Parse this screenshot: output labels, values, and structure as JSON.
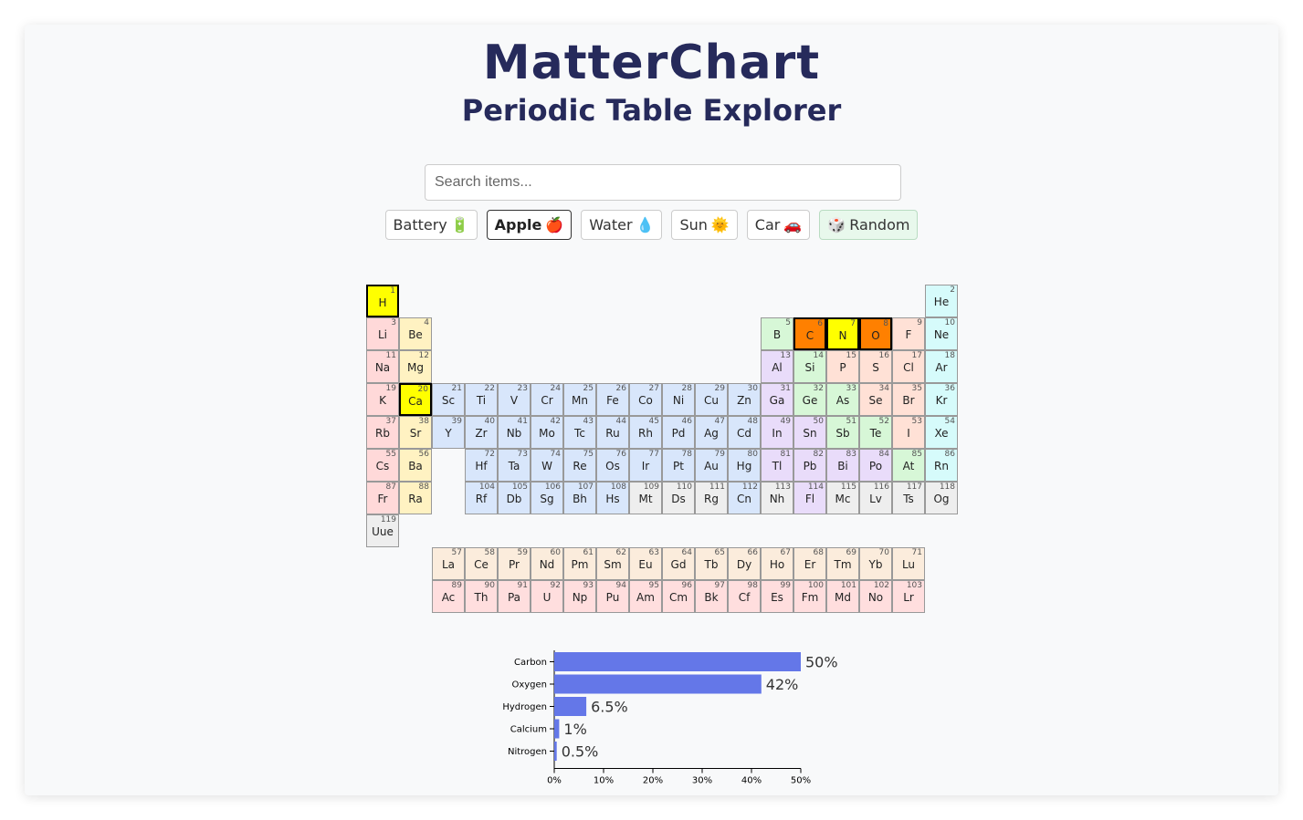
{
  "header": {
    "title": "MatterChart",
    "subtitle": "Periodic Table Explorer"
  },
  "search": {
    "placeholder": "Search items...",
    "value": ""
  },
  "items": [
    {
      "label": "Battery",
      "emoji": "🔋",
      "active": false
    },
    {
      "label": "Apple",
      "emoji": "🍎",
      "active": true
    },
    {
      "label": "Water",
      "emoji": "💧",
      "active": false
    },
    {
      "label": "Sun",
      "emoji": "🌞",
      "active": false
    },
    {
      "label": "Car",
      "emoji": "🚗",
      "active": false
    }
  ],
  "random_button": {
    "label": "Random",
    "emoji": "🎲"
  },
  "category_colors": {
    "alkali": "#ffd9d9",
    "alkaline": "#fff2c2",
    "transition": "#d8e6fb",
    "post_transition": "#e9dcfa",
    "metalloid": "#d7f7d7",
    "nonmetal": "#ffe1d6",
    "noble": "#d6fbfb",
    "lanthanide": "#fbecdc",
    "actinide": "#ffdede",
    "unknown": "#eeeeee"
  },
  "highlight_colors": {
    "strong": "#ff8000",
    "medium": "#ffff00"
  },
  "elements": [
    [
      "H",
      1,
      1,
      1,
      "medium"
    ],
    [
      "He",
      2,
      1,
      18,
      "noble"
    ],
    [
      "Li",
      3,
      2,
      1,
      "alkali"
    ],
    [
      "Be",
      4,
      2,
      2,
      "alkaline"
    ],
    [
      "B",
      5,
      2,
      13,
      "metalloid"
    ],
    [
      "C",
      6,
      2,
      14,
      "strong"
    ],
    [
      "N",
      7,
      2,
      15,
      "medium"
    ],
    [
      "O",
      8,
      2,
      16,
      "strong"
    ],
    [
      "F",
      9,
      2,
      17,
      "nonmetal"
    ],
    [
      "Ne",
      10,
      2,
      18,
      "noble"
    ],
    [
      "Na",
      11,
      3,
      1,
      "alkali"
    ],
    [
      "Mg",
      12,
      3,
      2,
      "alkaline"
    ],
    [
      "Al",
      13,
      3,
      13,
      "post_transition"
    ],
    [
      "Si",
      14,
      3,
      14,
      "metalloid"
    ],
    [
      "P",
      15,
      3,
      15,
      "nonmetal"
    ],
    [
      "S",
      16,
      3,
      16,
      "nonmetal"
    ],
    [
      "Cl",
      17,
      3,
      17,
      "nonmetal"
    ],
    [
      "Ar",
      18,
      3,
      18,
      "noble"
    ],
    [
      "K",
      19,
      4,
      1,
      "alkali"
    ],
    [
      "Ca",
      20,
      4,
      2,
      "medium"
    ],
    [
      "Sc",
      21,
      4,
      3,
      "transition"
    ],
    [
      "Ti",
      22,
      4,
      4,
      "transition"
    ],
    [
      "V",
      23,
      4,
      5,
      "transition"
    ],
    [
      "Cr",
      24,
      4,
      6,
      "transition"
    ],
    [
      "Mn",
      25,
      4,
      7,
      "transition"
    ],
    [
      "Fe",
      26,
      4,
      8,
      "transition"
    ],
    [
      "Co",
      27,
      4,
      9,
      "transition"
    ],
    [
      "Ni",
      28,
      4,
      10,
      "transition"
    ],
    [
      "Cu",
      29,
      4,
      11,
      "transition"
    ],
    [
      "Zn",
      30,
      4,
      12,
      "transition"
    ],
    [
      "Ga",
      31,
      4,
      13,
      "post_transition"
    ],
    [
      "Ge",
      32,
      4,
      14,
      "metalloid"
    ],
    [
      "As",
      33,
      4,
      15,
      "metalloid"
    ],
    [
      "Se",
      34,
      4,
      16,
      "nonmetal"
    ],
    [
      "Br",
      35,
      4,
      17,
      "nonmetal"
    ],
    [
      "Kr",
      36,
      4,
      18,
      "noble"
    ],
    [
      "Rb",
      37,
      5,
      1,
      "alkali"
    ],
    [
      "Sr",
      38,
      5,
      2,
      "alkaline"
    ],
    [
      "Y",
      39,
      5,
      3,
      "transition"
    ],
    [
      "Zr",
      40,
      5,
      4,
      "transition"
    ],
    [
      "Nb",
      41,
      5,
      5,
      "transition"
    ],
    [
      "Mo",
      42,
      5,
      6,
      "transition"
    ],
    [
      "Tc",
      43,
      5,
      7,
      "transition"
    ],
    [
      "Ru",
      44,
      5,
      8,
      "transition"
    ],
    [
      "Rh",
      45,
      5,
      9,
      "transition"
    ],
    [
      "Pd",
      46,
      5,
      10,
      "transition"
    ],
    [
      "Ag",
      47,
      5,
      11,
      "transition"
    ],
    [
      "Cd",
      48,
      5,
      12,
      "transition"
    ],
    [
      "In",
      49,
      5,
      13,
      "post_transition"
    ],
    [
      "Sn",
      50,
      5,
      14,
      "post_transition"
    ],
    [
      "Sb",
      51,
      5,
      15,
      "metalloid"
    ],
    [
      "Te",
      52,
      5,
      16,
      "metalloid"
    ],
    [
      "I",
      53,
      5,
      17,
      "nonmetal"
    ],
    [
      "Xe",
      54,
      5,
      18,
      "noble"
    ],
    [
      "Cs",
      55,
      6,
      1,
      "alkali"
    ],
    [
      "Ba",
      56,
      6,
      2,
      "alkaline"
    ],
    [
      "Hf",
      72,
      6,
      4,
      "transition"
    ],
    [
      "Ta",
      73,
      6,
      5,
      "transition"
    ],
    [
      "W",
      74,
      6,
      6,
      "transition"
    ],
    [
      "Re",
      75,
      6,
      7,
      "transition"
    ],
    [
      "Os",
      76,
      6,
      8,
      "transition"
    ],
    [
      "Ir",
      77,
      6,
      9,
      "transition"
    ],
    [
      "Pt",
      78,
      6,
      10,
      "transition"
    ],
    [
      "Au",
      79,
      6,
      11,
      "transition"
    ],
    [
      "Hg",
      80,
      6,
      12,
      "transition"
    ],
    [
      "Tl",
      81,
      6,
      13,
      "post_transition"
    ],
    [
      "Pb",
      82,
      6,
      14,
      "post_transition"
    ],
    [
      "Bi",
      83,
      6,
      15,
      "post_transition"
    ],
    [
      "Po",
      84,
      6,
      16,
      "post_transition"
    ],
    [
      "At",
      85,
      6,
      17,
      "metalloid"
    ],
    [
      "Rn",
      86,
      6,
      18,
      "noble"
    ],
    [
      "Fr",
      87,
      7,
      1,
      "alkali"
    ],
    [
      "Ra",
      88,
      7,
      2,
      "alkaline"
    ],
    [
      "Rf",
      104,
      7,
      4,
      "transition"
    ],
    [
      "Db",
      105,
      7,
      5,
      "transition"
    ],
    [
      "Sg",
      106,
      7,
      6,
      "transition"
    ],
    [
      "Bh",
      107,
      7,
      7,
      "transition"
    ],
    [
      "Hs",
      108,
      7,
      8,
      "transition"
    ],
    [
      "Mt",
      109,
      7,
      9,
      "unknown"
    ],
    [
      "Ds",
      110,
      7,
      10,
      "unknown"
    ],
    [
      "Rg",
      111,
      7,
      11,
      "unknown"
    ],
    [
      "Cn",
      112,
      7,
      12,
      "transition"
    ],
    [
      "Nh",
      113,
      7,
      13,
      "unknown"
    ],
    [
      "Fl",
      114,
      7,
      14,
      "post_transition"
    ],
    [
      "Mc",
      115,
      7,
      15,
      "unknown"
    ],
    [
      "Lv",
      116,
      7,
      16,
      "unknown"
    ],
    [
      "Ts",
      117,
      7,
      17,
      "unknown"
    ],
    [
      "Og",
      118,
      7,
      18,
      "unknown"
    ],
    [
      "Uue",
      119,
      8,
      1,
      "unknown"
    ],
    [
      "La",
      57,
      9,
      3,
      "lanthanide"
    ],
    [
      "Ce",
      58,
      9,
      4,
      "lanthanide"
    ],
    [
      "Pr",
      59,
      9,
      5,
      "lanthanide"
    ],
    [
      "Nd",
      60,
      9,
      6,
      "lanthanide"
    ],
    [
      "Pm",
      61,
      9,
      7,
      "lanthanide"
    ],
    [
      "Sm",
      62,
      9,
      8,
      "lanthanide"
    ],
    [
      "Eu",
      63,
      9,
      9,
      "lanthanide"
    ],
    [
      "Gd",
      64,
      9,
      10,
      "lanthanide"
    ],
    [
      "Tb",
      65,
      9,
      11,
      "lanthanide"
    ],
    [
      "Dy",
      66,
      9,
      12,
      "lanthanide"
    ],
    [
      "Ho",
      67,
      9,
      13,
      "lanthanide"
    ],
    [
      "Er",
      68,
      9,
      14,
      "lanthanide"
    ],
    [
      "Tm",
      69,
      9,
      15,
      "lanthanide"
    ],
    [
      "Yb",
      70,
      9,
      16,
      "lanthanide"
    ],
    [
      "Lu",
      71,
      9,
      17,
      "lanthanide"
    ],
    [
      "Ac",
      89,
      10,
      3,
      "actinide"
    ],
    [
      "Th",
      90,
      10,
      4,
      "actinide"
    ],
    [
      "Pa",
      91,
      10,
      5,
      "actinide"
    ],
    [
      "U",
      92,
      10,
      6,
      "actinide"
    ],
    [
      "Np",
      93,
      10,
      7,
      "actinide"
    ],
    [
      "Pu",
      94,
      10,
      8,
      "actinide"
    ],
    [
      "Am",
      95,
      10,
      9,
      "actinide"
    ],
    [
      "Cm",
      96,
      10,
      10,
      "actinide"
    ],
    [
      "Bk",
      97,
      10,
      11,
      "actinide"
    ],
    [
      "Cf",
      98,
      10,
      12,
      "actinide"
    ],
    [
      "Es",
      99,
      10,
      13,
      "actinide"
    ],
    [
      "Fm",
      100,
      10,
      14,
      "actinide"
    ],
    [
      "Md",
      101,
      10,
      15,
      "actinide"
    ],
    [
      "No",
      102,
      10,
      16,
      "actinide"
    ],
    [
      "Lr",
      103,
      10,
      17,
      "actinide"
    ]
  ],
  "chart_data": {
    "type": "bar",
    "orientation": "horizontal",
    "categories": [
      "Carbon",
      "Oxygen",
      "Hydrogen",
      "Calcium",
      "Nitrogen"
    ],
    "values": [
      50,
      42,
      6.5,
      1,
      0.5
    ],
    "value_labels": [
      "50%",
      "42%",
      "6.5%",
      "1%",
      "0.5%"
    ],
    "xlim": [
      0,
      50
    ],
    "x_ticks": [
      "0%",
      "10%",
      "20%",
      "30%",
      "40%",
      "50%"
    ],
    "bar_color": "#6477e8",
    "title": "",
    "xlabel": "",
    "ylabel": "",
    "grid": false
  }
}
